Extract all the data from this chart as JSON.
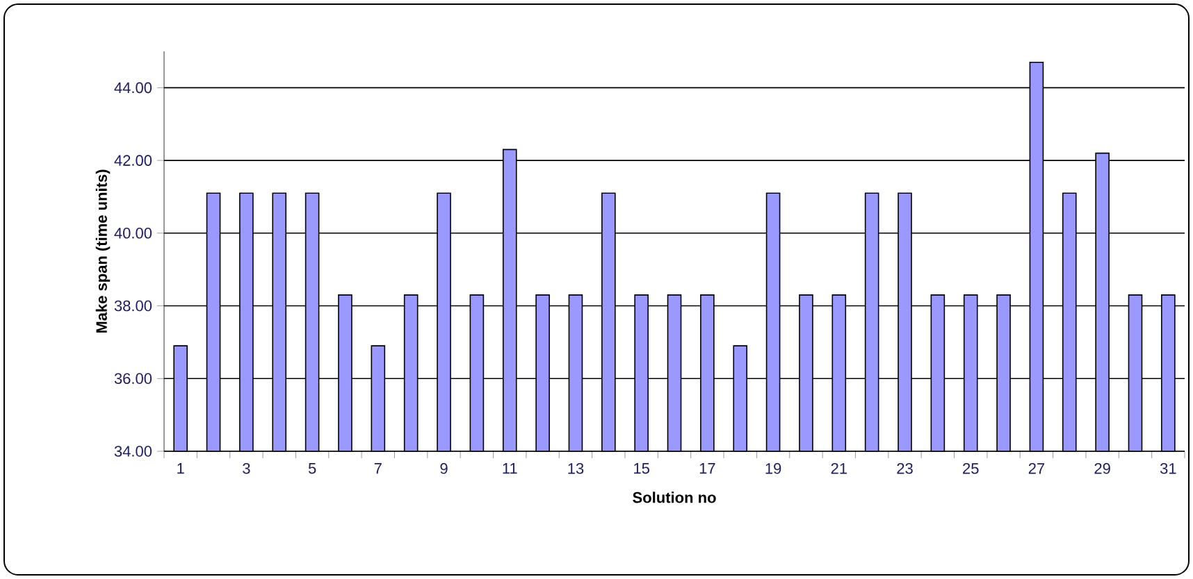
{
  "chart_data": {
    "type": "bar",
    "xlabel": "Solution no",
    "ylabel": "Make span (time units)",
    "categories": [
      "1",
      null,
      "3",
      null,
      "5",
      null,
      "7",
      null,
      "9",
      null,
      "11",
      null,
      "13",
      null,
      "15",
      null,
      "17",
      null,
      "19",
      null,
      "21",
      null,
      "23",
      null,
      "25",
      null,
      "27",
      null,
      "29",
      null,
      "31"
    ],
    "values": [
      36.9,
      41.1,
      41.1,
      41.1,
      41.1,
      38.3,
      36.9,
      38.3,
      41.1,
      38.3,
      42.3,
      38.3,
      38.3,
      41.1,
      38.3,
      38.3,
      38.3,
      36.9,
      41.1,
      38.3,
      38.3,
      41.1,
      41.1,
      38.3,
      38.3,
      38.3,
      44.7,
      41.1,
      42.2,
      38.3,
      38.3
    ],
    "color": "#9999ff",
    "ylim": [
      34,
      45
    ],
    "yticks": [
      {
        "value": 34,
        "label": "34.00"
      },
      {
        "value": 36,
        "label": "36.00"
      },
      {
        "value": 38,
        "label": "38.00"
      },
      {
        "value": 40,
        "label": "40.00"
      },
      {
        "value": 42,
        "label": "42.00"
      },
      {
        "value": 44,
        "label": "44.00"
      }
    ],
    "grid": "y"
  }
}
